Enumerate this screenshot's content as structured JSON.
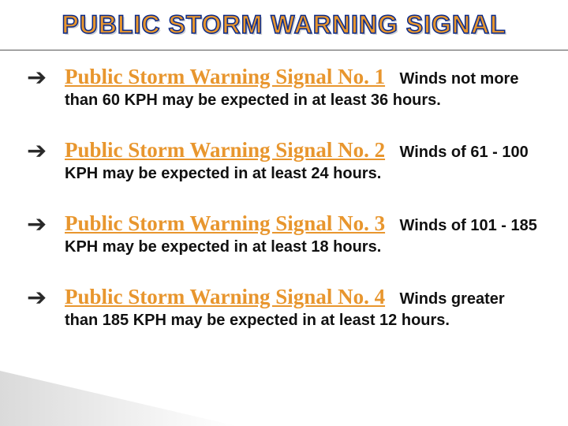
{
  "title": {
    "text": "PUBLIC STORM WARNING SIGNAL",
    "fill_color": "#E8962E",
    "stroke_color": "#0a2a8a",
    "font_size_pt": 32,
    "font_family": "Arial Black"
  },
  "bullet_glyph": "➔",
  "heading_color": "#E8962E",
  "desc_color": "#111111",
  "items": [
    {
      "heading": "Public Storm Warning Signal No. 1",
      "desc": "Winds not more than 60 KPH may be expected in at least 36 hours."
    },
    {
      "heading": "Public Storm Warning Signal No. 2",
      "desc": "Winds of 61 - 100 KPH may be expected in at least 24 hours."
    },
    {
      "heading": "Public Storm Warning Signal No. 3",
      "desc": "Winds of 101 - 185 KPH may be expected in at least 18 hours."
    },
    {
      "heading": "Public Storm Warning Signal No. 4",
      "desc": "Winds greater than 185 KPH may be expected in at least 12 hours."
    }
  ],
  "background_color": "#ffffff"
}
